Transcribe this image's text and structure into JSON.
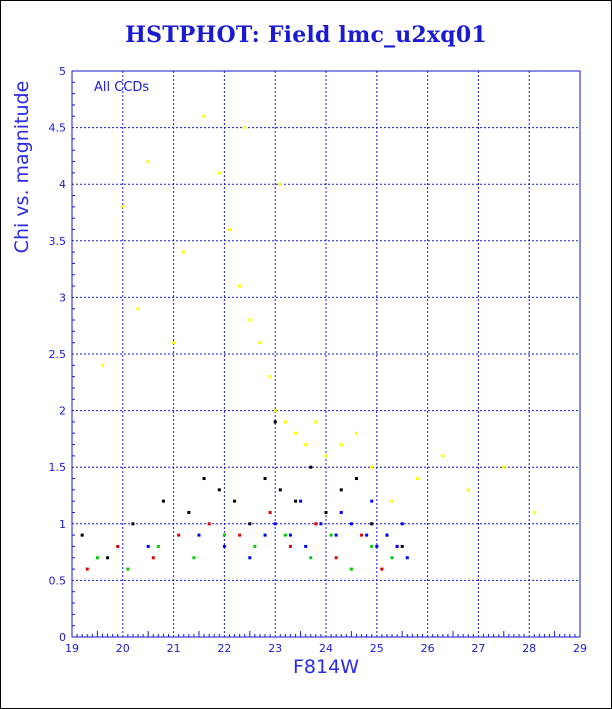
{
  "chart_data": {
    "type": "scatter",
    "title": "HSTPHOT: Field lmc_u2xq01",
    "xlabel": "F814W",
    "ylabel": "Chi vs. magnitude",
    "annotation": "All CCDs",
    "xlim": [
      19,
      29
    ],
    "ylim": [
      0,
      5
    ],
    "x_ticks": [
      "19",
      "20",
      "21",
      "22",
      "23",
      "24",
      "25",
      "26",
      "27",
      "28",
      "29"
    ],
    "y_ticks": [
      "0",
      "0.5",
      "1",
      "1.5",
      "2",
      "2.5",
      "3",
      "3.5",
      "4",
      "4.5",
      "5"
    ],
    "grid": true,
    "series": [
      {
        "color": "#ffff00",
        "points": [
          [
            20.0,
            3.8
          ],
          [
            20.5,
            4.2
          ],
          [
            21.2,
            3.4
          ],
          [
            21.6,
            4.6
          ],
          [
            21.9,
            4.1
          ],
          [
            22.1,
            3.6
          ],
          [
            22.3,
            3.1
          ],
          [
            22.5,
            2.8
          ],
          [
            22.7,
            2.6
          ],
          [
            22.9,
            2.3
          ],
          [
            23.0,
            2.0
          ],
          [
            23.2,
            1.9
          ],
          [
            23.4,
            1.8
          ],
          [
            23.6,
            1.7
          ],
          [
            23.8,
            1.9
          ],
          [
            24.0,
            1.6
          ],
          [
            24.3,
            1.7
          ],
          [
            24.6,
            1.8
          ],
          [
            24.9,
            1.5
          ],
          [
            25.3,
            1.2
          ],
          [
            25.8,
            1.4
          ],
          [
            26.3,
            1.6
          ],
          [
            26.8,
            1.3
          ],
          [
            27.5,
            1.5
          ],
          [
            28.1,
            1.1
          ],
          [
            21.0,
            2.6
          ],
          [
            20.3,
            2.9
          ],
          [
            19.6,
            2.4
          ],
          [
            22.4,
            4.5
          ],
          [
            23.1,
            4.0
          ]
        ]
      },
      {
        "color": "#000000",
        "points": [
          [
            19.2,
            0.9
          ],
          [
            19.7,
            0.7
          ],
          [
            20.2,
            1.0
          ],
          [
            20.8,
            1.2
          ],
          [
            21.3,
            1.1
          ],
          [
            21.6,
            1.4
          ],
          [
            21.9,
            1.3
          ],
          [
            22.2,
            1.2
          ],
          [
            22.5,
            1.0
          ],
          [
            22.8,
            1.4
          ],
          [
            23.1,
            1.3
          ],
          [
            23.4,
            1.2
          ],
          [
            23.7,
            1.5
          ],
          [
            24.0,
            1.1
          ],
          [
            24.3,
            1.3
          ],
          [
            24.6,
            1.4
          ],
          [
            24.9,
            1.0
          ],
          [
            25.2,
            0.9
          ],
          [
            25.5,
            0.8
          ],
          [
            23.0,
            1.9
          ]
        ]
      },
      {
        "color": "#dd0000",
        "points": [
          [
            19.3,
            0.6
          ],
          [
            19.9,
            0.8
          ],
          [
            20.6,
            0.7
          ],
          [
            21.1,
            0.9
          ],
          [
            21.7,
            1.0
          ],
          [
            22.3,
            0.9
          ],
          [
            22.9,
            1.1
          ],
          [
            23.3,
            0.8
          ],
          [
            23.8,
            1.0
          ],
          [
            24.2,
            0.7
          ],
          [
            24.7,
            0.9
          ],
          [
            25.1,
            0.6
          ],
          [
            25.4,
            0.8
          ]
        ]
      },
      {
        "color": "#00cc00",
        "points": [
          [
            19.5,
            0.7
          ],
          [
            20.1,
            0.6
          ],
          [
            20.7,
            0.8
          ],
          [
            21.4,
            0.7
          ],
          [
            22.0,
            0.9
          ],
          [
            22.6,
            0.8
          ],
          [
            23.2,
            0.9
          ],
          [
            23.7,
            0.7
          ],
          [
            24.1,
            0.9
          ],
          [
            24.5,
            0.6
          ],
          [
            24.9,
            0.8
          ],
          [
            25.3,
            0.7
          ]
        ]
      },
      {
        "color": "#0000ff",
        "points": [
          [
            20.5,
            0.8
          ],
          [
            21.5,
            0.9
          ],
          [
            22.0,
            0.8
          ],
          [
            22.5,
            0.7
          ],
          [
            22.8,
            0.9
          ],
          [
            23.0,
            1.0
          ],
          [
            23.3,
            0.9
          ],
          [
            23.6,
            0.8
          ],
          [
            23.9,
            1.0
          ],
          [
            24.2,
            0.9
          ],
          [
            24.5,
            1.0
          ],
          [
            24.8,
            0.9
          ],
          [
            25.0,
            0.8
          ],
          [
            25.2,
            0.9
          ],
          [
            25.4,
            0.8
          ],
          [
            25.6,
            0.7
          ],
          [
            23.5,
            1.2
          ],
          [
            24.3,
            1.1
          ],
          [
            24.9,
            1.2
          ],
          [
            25.5,
            1.0
          ]
        ]
      }
    ]
  }
}
